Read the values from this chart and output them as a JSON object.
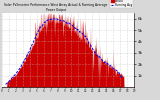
{
  "title": "Solar PV/Inverter Performance West Array Actual & Running Average Power Output",
  "bg_color": "#d8d8d8",
  "plot_bg_color": "#ffffff",
  "bar_color": "#cc0000",
  "avg_color": "#0000ee",
  "grid_color": "#bbbbbb",
  "ylim": [
    0,
    6500
  ],
  "ylabel_right": [
    "1k",
    "2k",
    "3k",
    "4k",
    "5k",
    "6k"
  ],
  "yticks": [
    1000,
    2000,
    3000,
    4000,
    5000,
    6000
  ],
  "n_points": 500,
  "seed": 12
}
